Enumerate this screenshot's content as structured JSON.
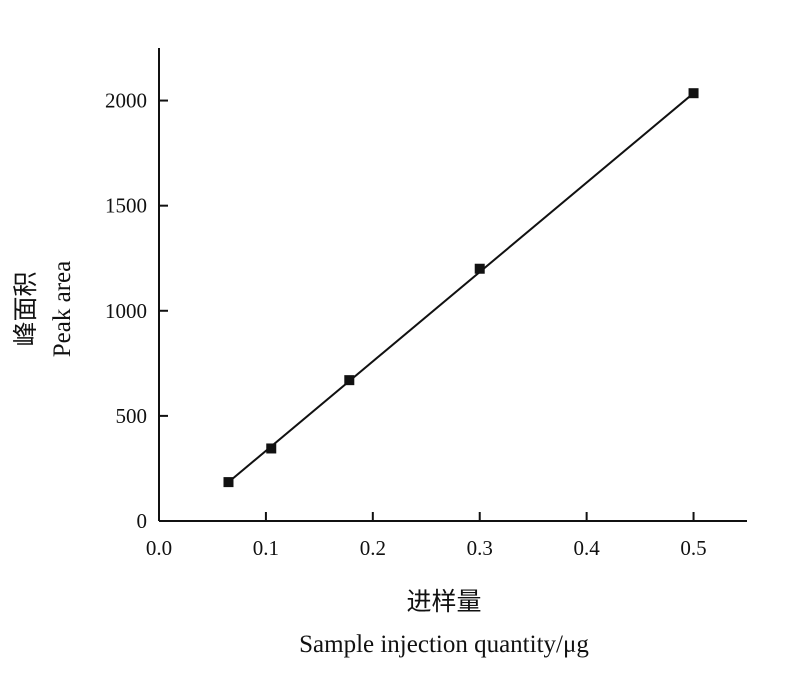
{
  "chart_data": {
    "type": "scatter",
    "xlabel_cn": "进样量",
    "xlabel_en": "Sample injection quantity/μg",
    "ylabel_cn": "峰面积",
    "ylabel_en": "Peak area",
    "xlim": [
      0.0,
      0.55
    ],
    "ylim": [
      0,
      2250
    ],
    "x_ticks": [
      0.0,
      0.1,
      0.2,
      0.3,
      0.4,
      0.5
    ],
    "x_tick_labels": [
      "0.0",
      "0.1",
      "0.2",
      "0.3",
      "0.4",
      "0.5"
    ],
    "y_ticks": [
      0,
      500,
      1000,
      1500,
      2000
    ],
    "y_tick_labels": [
      "0",
      "500",
      "1000",
      "1500",
      "2000"
    ],
    "grid": false,
    "series": [
      {
        "marker": "square",
        "x": [
          0.065,
          0.105,
          0.178,
          0.3,
          0.5
        ],
        "y": [
          185,
          345,
          670,
          1200,
          2035
        ]
      }
    ],
    "fit_line": {
      "x": [
        0.065,
        0.5
      ],
      "y": [
        185,
        2035
      ]
    },
    "color": "#111111"
  }
}
